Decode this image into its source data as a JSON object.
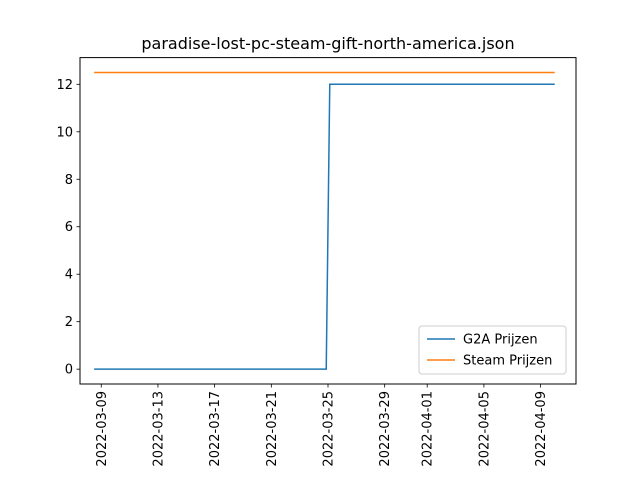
{
  "chart_data": {
    "type": "line",
    "title": "paradise-lost-pc-steam-gift-north-america.json",
    "xlabel": "",
    "ylabel": "",
    "x_tick_labels": [
      "2022-03-09",
      "2022-03-13",
      "2022-03-17",
      "2022-03-21",
      "2022-03-25",
      "2022-03-29",
      "2022-04-01",
      "2022-04-05",
      "2022-04-09"
    ],
    "y_ticks": [
      0,
      2,
      4,
      6,
      8,
      10,
      12
    ],
    "xlim": [
      "2022-03-07T12:00",
      "2022-04-11T12:00"
    ],
    "ylim": [
      -0.625,
      13.125
    ],
    "grid": false,
    "legend_position": "lower-right",
    "series": [
      {
        "name": "G2A Prijzen",
        "color": "#1f77b4",
        "points": [
          {
            "x": "2022-03-08T12:00",
            "y": 0
          },
          {
            "x": "2022-03-24T21:00",
            "y": 0
          },
          {
            "x": "2022-03-25T03:00",
            "y": 12
          },
          {
            "x": "2022-04-10T00:00",
            "y": 12
          }
        ]
      },
      {
        "name": "Steam Prijzen",
        "color": "#ff7f0e",
        "points": [
          {
            "x": "2022-03-08T12:00",
            "y": 12.5
          },
          {
            "x": "2022-04-10T00:00",
            "y": 12.5
          }
        ]
      }
    ]
  }
}
